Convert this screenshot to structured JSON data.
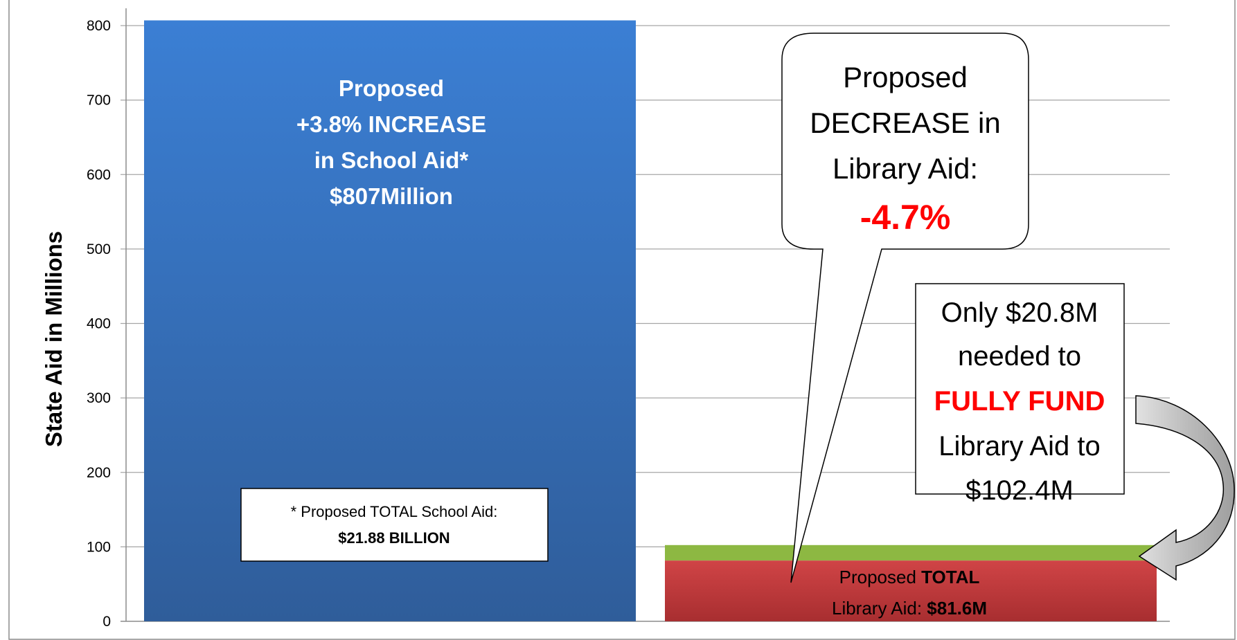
{
  "chart_data": {
    "type": "bar",
    "ylabel": "State Aid in Millions",
    "ylim": [
      0,
      800
    ],
    "yticks": [
      0,
      100,
      200,
      300,
      400,
      500,
      600,
      700,
      800
    ],
    "grid": true,
    "colors": {
      "school_top": "#3b7fd4",
      "school_bottom": "#2f5d9a",
      "library_base": "#c0393b",
      "library_gap": "#8db842",
      "callout_text": "#ff0000"
    },
    "bars": [
      {
        "category": "School Aid",
        "value": 807,
        "label_lines": [
          "Proposed",
          "+3.8% INCREASE",
          "in School Aid*",
          "$807Million"
        ],
        "note": {
          "line1": "* Proposed TOTAL School Aid:",
          "line2": "$21.88 BILLION"
        }
      },
      {
        "category": "Library Aid",
        "segments": [
          {
            "name": "Proposed TOTAL Library Aid",
            "value": 81.6
          },
          {
            "name": "Needed to fully fund",
            "value": 20.8
          }
        ],
        "label": {
          "line1_a": "Proposed ",
          "line1_b": "TOTAL",
          "line2_a": "Library Aid: ",
          "line2_b": "$81.6M"
        }
      }
    ],
    "annotations": {
      "bubble": {
        "lines": [
          "Proposed",
          "DECREASE in",
          "Library Aid:"
        ],
        "pct": "-4.7%"
      },
      "box": {
        "line1": "Only $20.8M",
        "line2": "needed to",
        "line3": "FULLY FUND",
        "line4": "Library Aid to",
        "line5": "$102.4M"
      }
    }
  }
}
